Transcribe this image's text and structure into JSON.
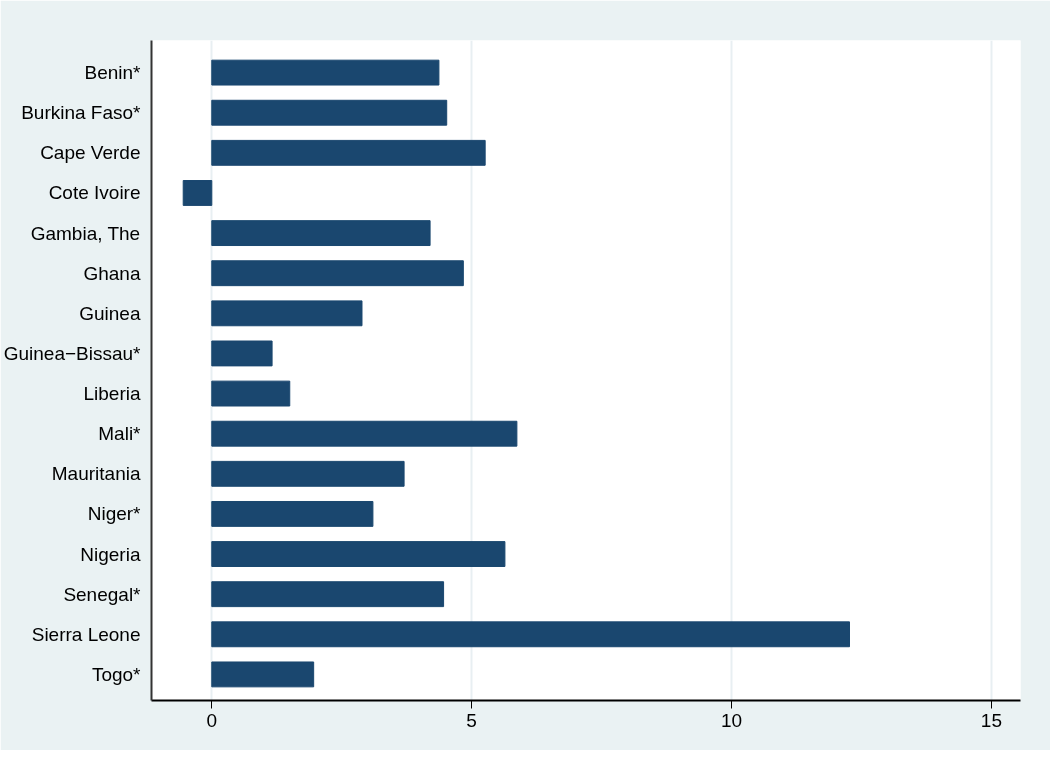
{
  "chart_data": {
    "type": "bar",
    "orientation": "horizontal",
    "categories": [
      "Benin*",
      "Burkina Faso*",
      "Cape Verde",
      "Cote Ivoire",
      "Gambia, The",
      "Ghana",
      "Guinea",
      "Guinea−Bissau*",
      "Liberia",
      "Mali*",
      "Mauritania",
      "Niger*",
      "Nigeria",
      "Senegal*",
      "Sierra Leone",
      "Togo*"
    ],
    "values": [
      4.37,
      4.52,
      5.26,
      -0.55,
      4.2,
      4.84,
      2.89,
      1.16,
      1.5,
      5.87,
      3.7,
      3.1,
      5.64,
      4.46,
      12.27,
      1.96
    ],
    "color": "#1a476f",
    "xlim": [
      -1.16,
      15.56
    ],
    "xticks": [
      0,
      5,
      10,
      15
    ],
    "grid": "x"
  }
}
